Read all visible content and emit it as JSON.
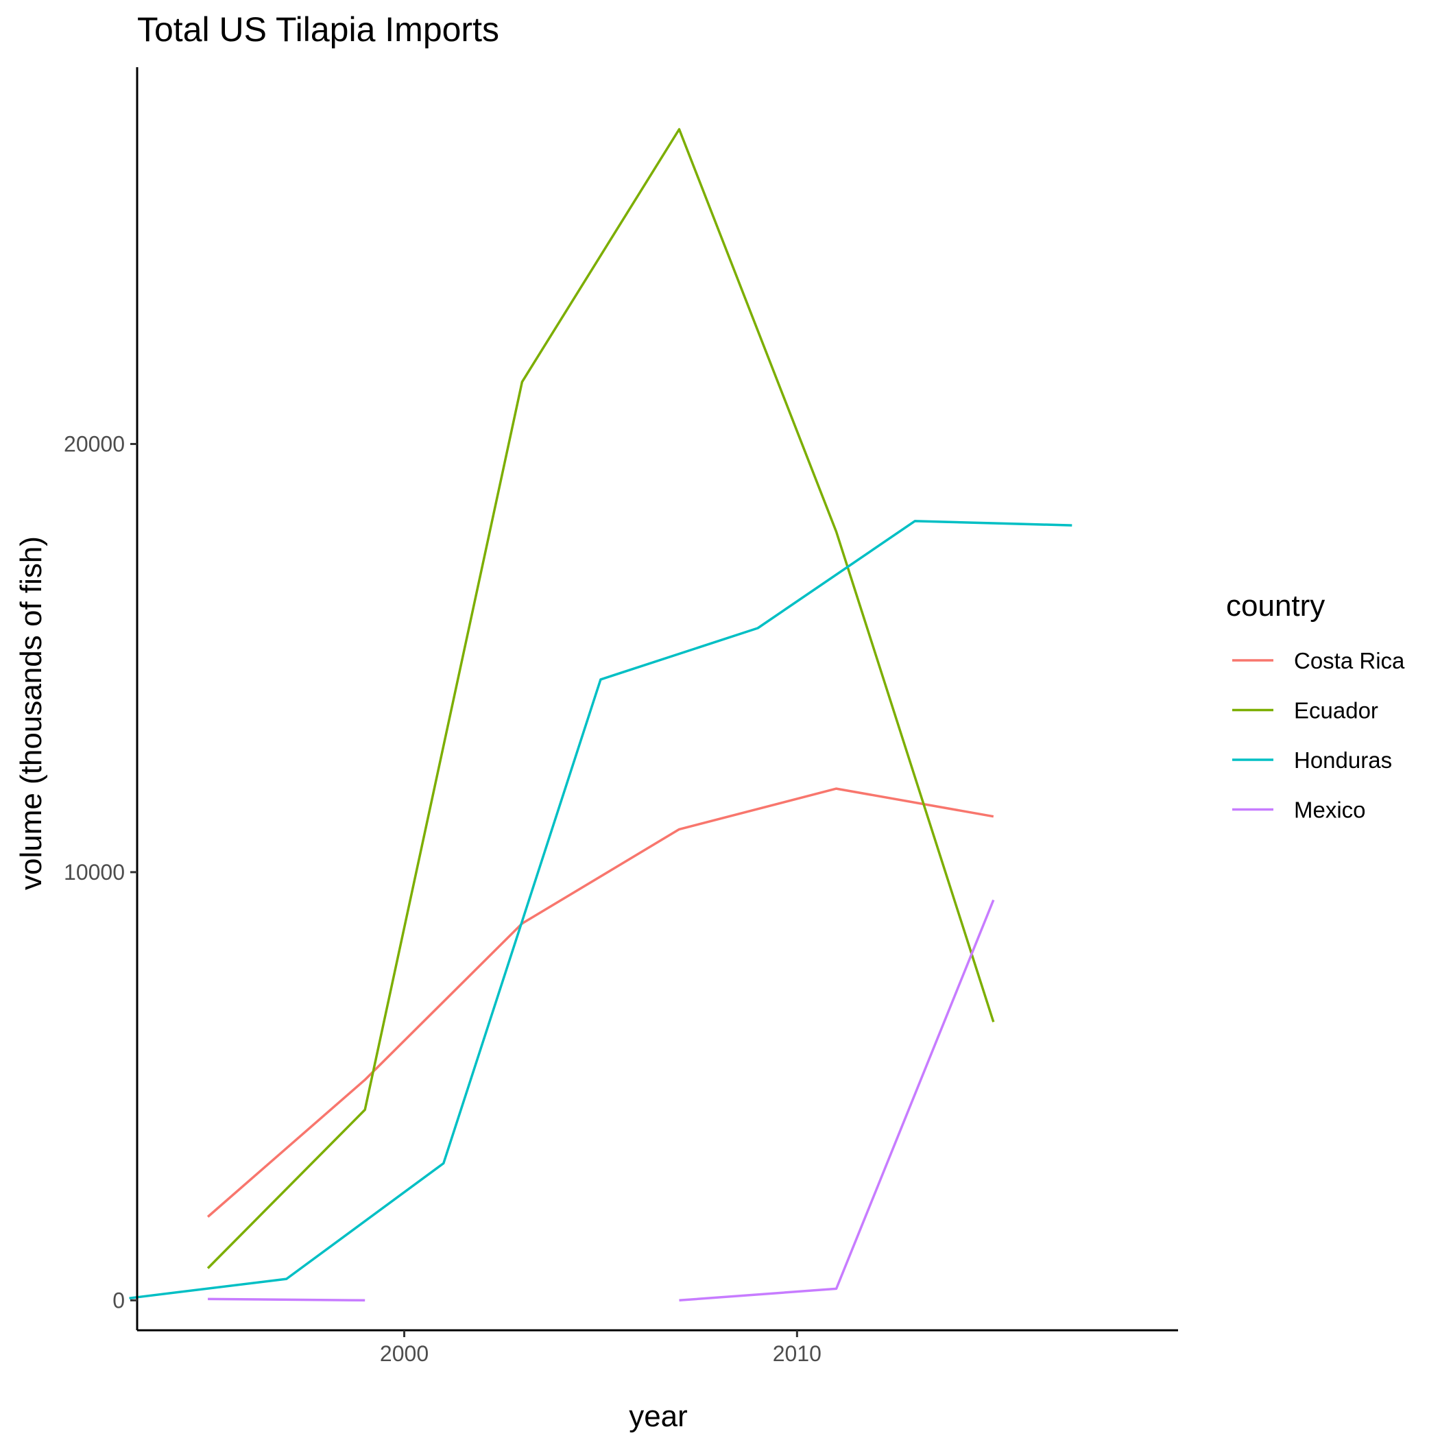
{
  "chart_data": {
    "type": "line",
    "title": "Total US Tilapia Imports",
    "xlabel": "year",
    "ylabel": "volume (thousands of fish)",
    "xlim": [
      1993.2,
      2019.7
    ],
    "ylim": [
      -700,
      28800
    ],
    "x_ticks": [
      2000,
      2010
    ],
    "y_ticks": [
      0,
      10000,
      20000
    ],
    "grid": false,
    "legend": {
      "title": "country",
      "position": "right"
    },
    "series": [
      {
        "name": "Costa Rica",
        "color": "#F8766D",
        "points": [
          [
            1995,
            1950
          ],
          [
            1999,
            5150
          ],
          [
            2003,
            8800
          ],
          [
            2007,
            11000
          ],
          [
            2011,
            11950
          ],
          [
            2015,
            11300
          ]
        ]
      },
      {
        "name": "Ecuador",
        "color": "#7CAE00",
        "points": [
          [
            1995,
            750
          ],
          [
            1999,
            4450
          ],
          [
            2003,
            21450
          ],
          [
            2007,
            27350
          ],
          [
            2011,
            17950
          ],
          [
            2015,
            6500
          ]
        ]
      },
      {
        "name": "Honduras",
        "color": "#00BFC4",
        "points": [
          [
            1993,
            50
          ],
          [
            1997,
            500
          ],
          [
            2001,
            3200
          ],
          [
            2005,
            14500
          ],
          [
            2009,
            15700
          ],
          [
            2013,
            18200
          ],
          [
            2017,
            18100
          ]
        ]
      },
      {
        "name": "Mexico",
        "color": "#C77CFF",
        "segments": [
          [
            [
              1995,
              30
            ],
            [
              1999,
              0
            ]
          ],
          [
            [
              2007,
              0
            ],
            [
              2011,
              270
            ],
            [
              2015,
              9350
            ]
          ]
        ]
      }
    ]
  }
}
